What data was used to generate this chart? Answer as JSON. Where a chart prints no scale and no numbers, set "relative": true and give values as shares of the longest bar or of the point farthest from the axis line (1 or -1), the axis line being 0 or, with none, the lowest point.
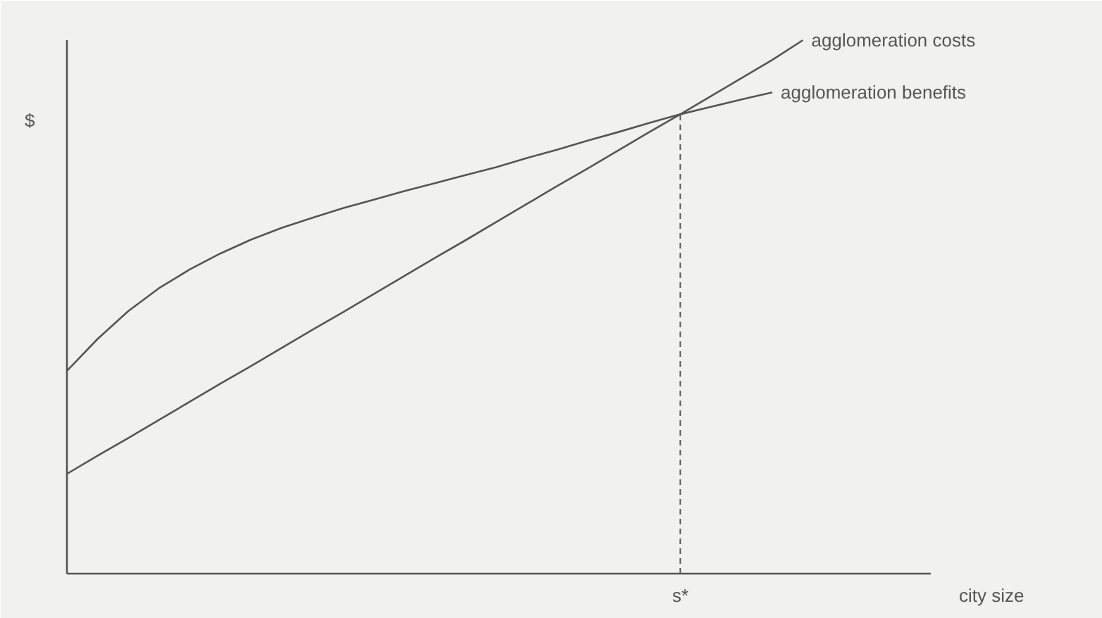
{
  "chart_data": {
    "type": "line",
    "relative": true,
    "ylabel": "$",
    "categories": [
      null,
      null,
      null,
      null,
      null,
      null,
      null,
      null,
      null,
      null,
      null,
      null,
      null,
      null,
      null,
      null,
      null,
      null,
      null,
      null,
      null,
      null,
      null,
      null,
      null
    ],
    "series": [
      {
        "name": "agglomeration costs",
        "color": "#555555",
        "values": [
          0.187,
          0.221,
          0.254,
          0.288,
          0.322,
          0.356,
          0.389,
          0.423,
          0.457,
          0.49,
          0.524,
          0.558,
          0.592,
          0.625,
          0.659,
          0.693,
          0.727,
          0.76,
          0.794,
          0.828,
          0.861,
          0.895,
          0.929,
          0.963,
          1.0
        ]
      },
      {
        "name": "agglomeration benefits",
        "color": "#555555",
        "values": [
          0.38,
          0.44,
          0.492,
          0.535,
          0.57,
          0.6,
          0.626,
          0.648,
          0.667,
          0.685,
          0.701,
          0.717,
          0.732,
          0.747,
          0.762,
          0.779,
          0.795,
          0.812,
          0.828,
          0.845,
          0.861,
          0.875,
          0.889,
          0.902,
          null
        ]
      }
    ],
    "annotations": [
      "s*",
      "city size"
    ],
    "legend": false,
    "marker": "none",
    "line_style": "solid"
  }
}
